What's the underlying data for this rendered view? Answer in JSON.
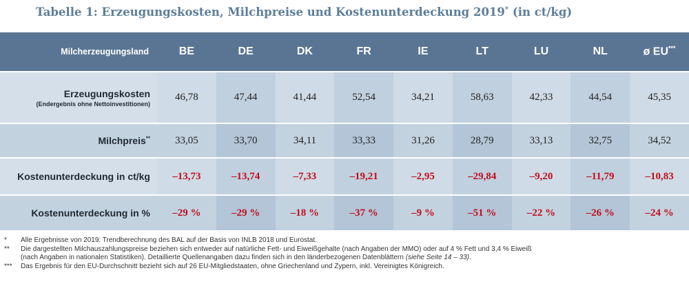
{
  "title": {
    "main": "Tabelle 1: Erzeugungskosten, Milchpreise und Kostenunterdeckung 2019",
    "mark": "*",
    "unit": " (in ct/kg)"
  },
  "table": {
    "row_header": "Milcherzeugungsland",
    "columns": [
      {
        "label": "BE"
      },
      {
        "label": "DE"
      },
      {
        "label": "DK"
      },
      {
        "label": "FR"
      },
      {
        "label": "IE"
      },
      {
        "label": "LT"
      },
      {
        "label": "LU"
      },
      {
        "label": "NL"
      },
      {
        "label": "ø EU",
        "mark": "***"
      }
    ],
    "rows": [
      {
        "label": "Erzeugungskosten",
        "sublabel": "(Endergebnis ohne Nettoinvestitionen)",
        "values": [
          "46,78",
          "47,44",
          "41,44",
          "52,54",
          "34,21",
          "58,63",
          "42,33",
          "44,54",
          "45,35"
        ]
      },
      {
        "label": "Milchpreis",
        "mark": "**",
        "values": [
          "33,05",
          "33,70",
          "34,11",
          "33,33",
          "31,26",
          "28,79",
          "33,13",
          "32,75",
          "34,52"
        ]
      },
      {
        "label": "Kostenunterdeckung in ct/kg",
        "values": [
          "–13,73",
          "–13,74",
          "–7,33",
          "–19,21",
          "–2,95",
          "–29,84",
          "–9,20",
          "–11,79",
          "–10,83"
        ]
      },
      {
        "label": "Kostenunterdeckung in %",
        "values": [
          "–29 %",
          "–29 %",
          "–18 %",
          "–37 %",
          "–9 %",
          "–51 %",
          "–22 %",
          "–26 %",
          "–24 %"
        ]
      }
    ]
  },
  "notes": [
    {
      "mark": "*",
      "text": "Alle Ergebnisse von 2019: Trendberechnung des BAL auf der Basis von INLB 2018 und Eurostat."
    },
    {
      "mark": "**",
      "text": "Die dargestellten Milchauszahlungspreise beziehen sich entweder auf natürliche Fett- und Eiweißgehalte (nach Angaben der MMO) oder auf 4 % Fett und 3,4 % Eiweiß",
      "text2": "(nach Angaben in nationalen Statistiken). Detaillierte Quellenangaben dazu finden sich in den länderbezogenen Datenblättern ",
      "ref": "(siehe Seite 14 – 33)",
      "end": "."
    },
    {
      "mark": "***",
      "text": "Das Ergebnis für den EU-Durchschnitt bezieht sich auf 26 EU-Mitgliedstaaten, ohne Griechenland und Zypern, inkl. Vereinigtes Königreich."
    }
  ],
  "colors": {
    "header_bg": "#5a7593",
    "title": "#5d7e99",
    "negative": "#c20d1d",
    "row_light": "#d4dfe9",
    "row_mid": "#c3d2df"
  }
}
